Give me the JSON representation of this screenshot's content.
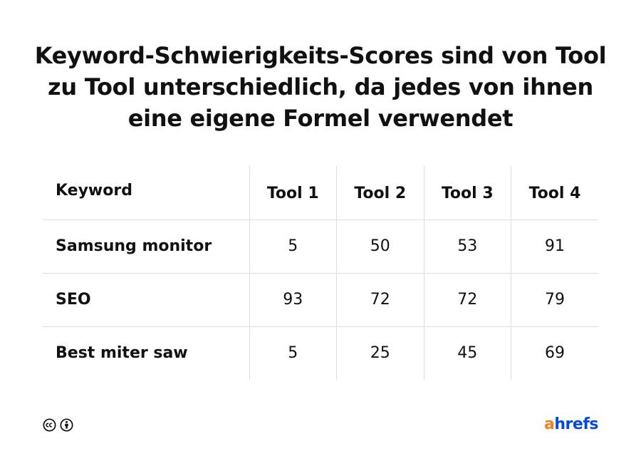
{
  "title": "Keyword-Schwierigkeits-Scores sind von Tool zu Tool unterschiedlich, da jedes von ihnen eine eigene Formel verwendet",
  "chart_data": {
    "type": "table",
    "title": "Keyword-Schwierigkeits-Scores sind von Tool zu Tool unterschiedlich, da jedes von ihnen eine eigene Formel verwendet",
    "columns": [
      "Keyword",
      "Tool 1",
      "Tool 2",
      "Tool 3",
      "Tool 4"
    ],
    "rows": [
      {
        "keyword": "Samsung monitor",
        "values": [
          "5",
          "50",
          "53",
          "91"
        ]
      },
      {
        "keyword": "SEO",
        "values": [
          "93",
          "72",
          "72",
          "79"
        ]
      },
      {
        "keyword": "Best miter saw",
        "values": [
          "5",
          "25",
          "45",
          "69"
        ]
      }
    ]
  },
  "footer": {
    "icons": [
      "creative-commons-icon",
      "attribution-person-icon"
    ],
    "logo": {
      "first_letter": "a",
      "rest": "hrefs"
    },
    "colors": {
      "logo_a": "#f58220",
      "logo_rest": "#054ada"
    }
  }
}
